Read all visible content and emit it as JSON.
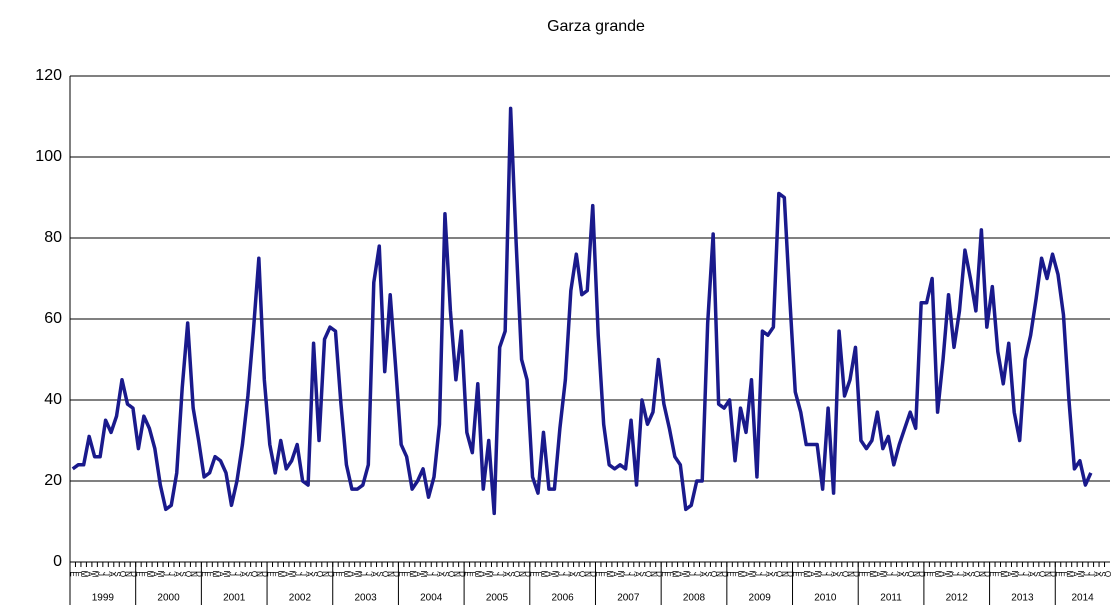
{
  "chart_data": {
    "type": "line",
    "title": "Garza grande",
    "categories": [
      "E",
      "F",
      "M",
      "A",
      "M",
      "J",
      "J",
      "A",
      "S",
      "O",
      "N",
      "D",
      "E",
      "F",
      "M",
      "A",
      "M",
      "J",
      "J",
      "A",
      "S",
      "O",
      "N",
      "D",
      "E",
      "F",
      "M",
      "A",
      "M",
      "J",
      "J",
      "A",
      "S",
      "O",
      "N",
      "D",
      "E",
      "F",
      "M",
      "A",
      "M",
      "J",
      "J",
      "A",
      "S",
      "O",
      "N",
      "D",
      "E",
      "F",
      "M",
      "A",
      "M",
      "J",
      "J",
      "A",
      "S",
      "O",
      "N",
      "D",
      "E",
      "F",
      "M",
      "A",
      "M",
      "J",
      "J",
      "A",
      "S",
      "O",
      "N",
      "D",
      "E",
      "F",
      "M",
      "A",
      "M",
      "J",
      "J",
      "A",
      "S",
      "O",
      "N",
      "D",
      "E",
      "F",
      "M",
      "A",
      "M",
      "J",
      "J",
      "A",
      "S",
      "O",
      "N",
      "D",
      "E",
      "F",
      "M",
      "A",
      "M",
      "J",
      "J",
      "A",
      "S",
      "O",
      "N",
      "D",
      "E",
      "F",
      "M",
      "A",
      "M",
      "J",
      "J",
      "A",
      "S",
      "O",
      "N",
      "D",
      "E",
      "F",
      "M",
      "A",
      "M",
      "J",
      "J",
      "A",
      "S",
      "O",
      "N",
      "D",
      "E",
      "F",
      "M",
      "A",
      "M",
      "J",
      "J",
      "A",
      "S",
      "O",
      "N",
      "D",
      "E",
      "F",
      "M",
      "A",
      "M",
      "J",
      "J",
      "A",
      "S",
      "O",
      "N",
      "D",
      "E",
      "F",
      "M",
      "A",
      "M",
      "J",
      "J",
      "A",
      "S",
      "O",
      "N",
      "D",
      "E",
      "F",
      "M",
      "A",
      "M",
      "J",
      "J",
      "A",
      "S",
      "O",
      "N",
      "D",
      "E",
      "F",
      "M",
      "A",
      "M",
      "J",
      "J",
      "A",
      "S",
      "O"
    ],
    "years": [
      "1999",
      "2000",
      "2001",
      "2002",
      "2003",
      "2004",
      "2005",
      "2006",
      "2007",
      "2008",
      "2009",
      "2010",
      "2011",
      "2012",
      "2013",
      "2014"
    ],
    "series": [
      {
        "name": "Garza grande",
        "color": "#1a1a8c",
        "values": [
          23,
          24,
          24,
          31,
          26,
          26,
          35,
          32,
          36,
          45,
          39,
          38,
          28,
          36,
          33,
          28,
          19,
          13,
          14,
          22,
          43,
          59,
          38,
          30,
          21,
          22,
          26,
          25,
          22,
          14,
          20,
          29,
          41,
          57,
          75,
          45,
          29,
          22,
          30,
          23,
          25,
          29,
          20,
          19,
          54,
          30,
          55,
          58,
          57,
          39,
          24,
          18,
          18,
          19,
          24,
          69,
          78,
          47,
          66,
          48,
          29,
          26,
          18,
          20,
          23,
          16,
          21,
          34,
          86,
          62,
          45,
          57,
          32,
          27,
          44,
          18,
          30,
          12,
          53,
          57,
          112,
          79,
          50,
          45,
          21,
          17,
          32,
          18,
          18,
          33,
          45,
          67,
          76,
          66,
          67,
          88,
          56,
          34,
          24,
          23,
          24,
          23,
          35,
          19,
          40,
          34,
          37,
          50,
          39,
          33,
          26,
          24,
          13,
          14,
          20,
          20,
          59,
          81,
          39,
          38,
          40,
          25,
          38,
          32,
          45,
          21,
          57,
          56,
          58,
          91,
          90,
          65,
          42,
          37,
          29,
          29,
          29,
          18,
          38,
          17,
          57,
          41,
          45,
          53,
          30,
          28,
          30,
          37,
          28,
          31,
          24,
          29,
          33,
          37,
          33,
          64,
          64,
          70,
          37,
          50,
          66,
          53,
          62,
          77,
          70,
          62,
          82,
          58,
          68,
          52,
          44,
          54,
          37,
          30,
          50,
          56,
          65,
          75,
          70,
          76,
          71,
          61,
          40,
          23,
          25,
          19,
          22,
          null,
          null,
          null
        ]
      }
    ],
    "ylim": [
      0,
      120
    ],
    "yticks": [
      0,
      20,
      40,
      60,
      80,
      100,
      120
    ],
    "grid": true
  }
}
